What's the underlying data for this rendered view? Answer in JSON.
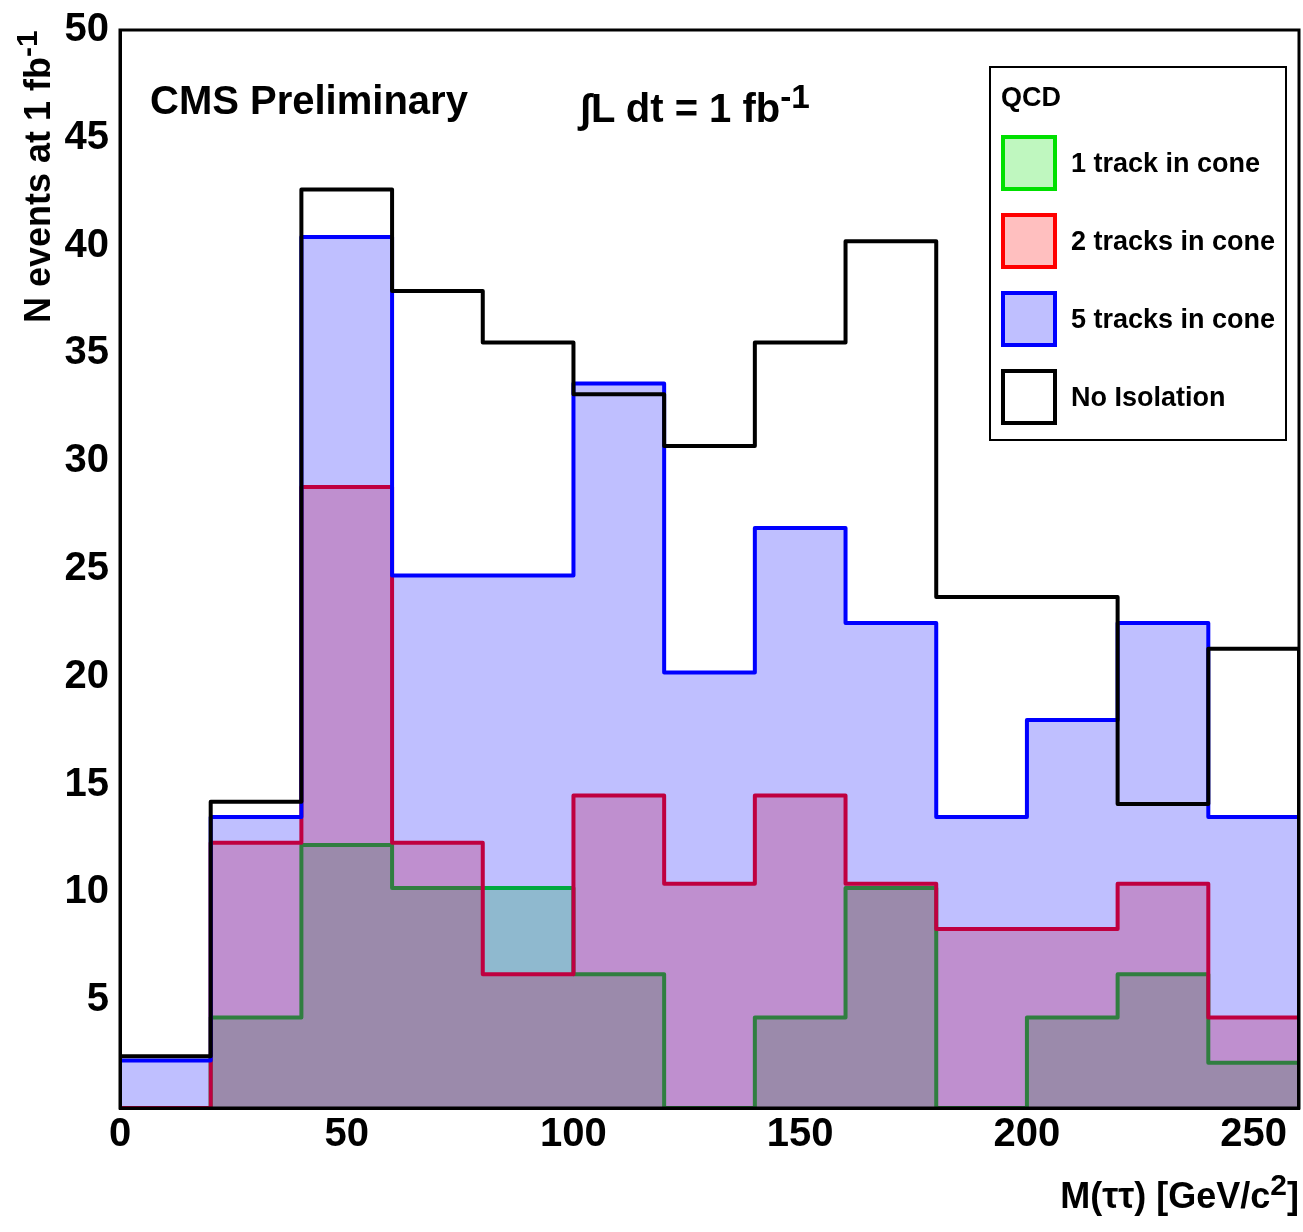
{
  "chart_data": {
    "type": "histogram",
    "xlabel": "M(ττ) [GeV/c$^{2}$]",
    "ylabel": "N events at 1 fb$^{-1}$",
    "legend_title": "QCD",
    "legend": "top right",
    "grid": false,
    "annotations": [
      "CMS Preliminary",
      "∫L dt = 1 fb$^{-1}$"
    ],
    "bins": [
      0,
      20,
      40,
      60,
      80,
      100,
      120,
      140,
      160,
      180,
      200,
      220,
      240,
      260
    ],
    "xlim": [
      0,
      260
    ],
    "xticks": [
      0,
      50,
      100,
      150,
      200,
      250
    ],
    "ylim": [
      0,
      50
    ],
    "yticks": [
      5,
      10,
      15,
      20,
      25,
      30,
      35,
      40,
      45,
      50
    ],
    "series": [
      {
        "name": "1 track in cone",
        "color": "#00e000",
        "values": [
          0,
          4.2,
          12.2,
          10.2,
          10.2,
          6.2,
          0,
          4.2,
          10.2,
          0,
          4.2,
          6.2,
          2.1
        ]
      },
      {
        "name": "2 tracks in cone",
        "color": "#ff0000",
        "values": [
          0,
          12.3,
          28.8,
          12.3,
          6.2,
          14.5,
          10.4,
          14.5,
          10.4,
          8.3,
          8.3,
          10.4,
          4.2
        ]
      },
      {
        "name": "5 tracks in cone",
        "color": "#0000ff",
        "values": [
          2.2,
          13.5,
          40.4,
          24.7,
          24.7,
          33.6,
          20.2,
          26.9,
          22.5,
          13.5,
          18,
          22.5,
          13.5
        ]
      },
      {
        "name": "No Isolation",
        "color": "#000000",
        "values": [
          2.4,
          14.2,
          42.6,
          37.9,
          35.5,
          33.1,
          30.7,
          35.5,
          40.2,
          23.7,
          23.7,
          14.1,
          21.3
        ]
      }
    ]
  }
}
